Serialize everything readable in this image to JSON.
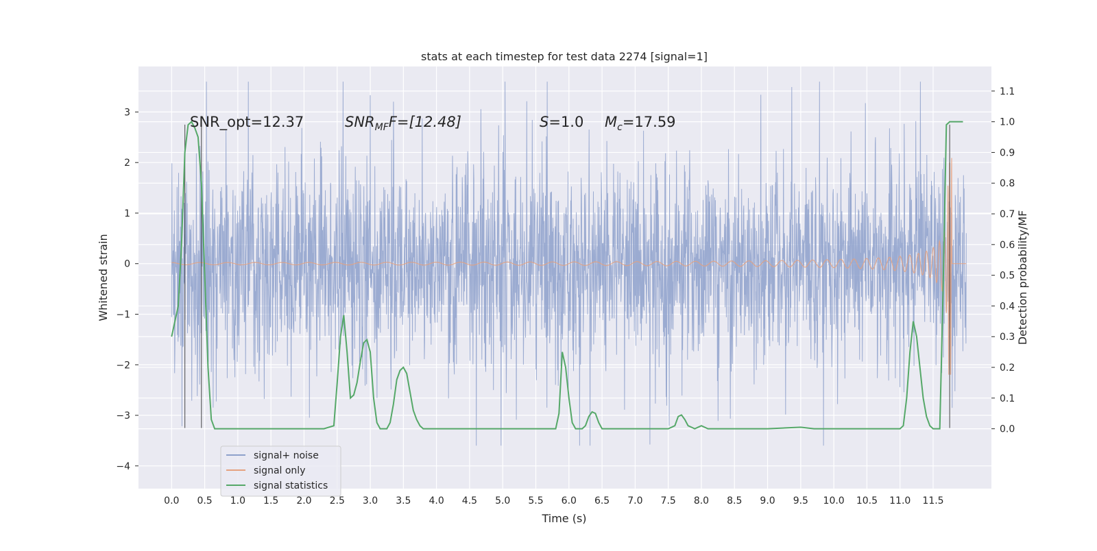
{
  "chart_data": {
    "type": "line",
    "title": "stats at each timestep for test data 2274 [signal=1]",
    "xlabel": "Time (s)",
    "ylabel_left": "Whitened strain",
    "ylabel_right": "Detection probability/MF",
    "xlim": [
      -0.5,
      12.38
    ],
    "ylim_left": [
      -4.45,
      3.9
    ],
    "ylim_right": [
      -0.195,
      1.18
    ],
    "x_ticks": [
      "0.0",
      "0.5",
      "1.0",
      "1.5",
      "2.0",
      "2.5",
      "3.0",
      "3.5",
      "4.0",
      "4.5",
      "5.0",
      "5.5",
      "6.0",
      "6.5",
      "7.0",
      "7.5",
      "8.0",
      "8.5",
      "9.0",
      "9.5",
      "10.0",
      "10.5",
      "11.0",
      "11.5"
    ],
    "y_ticks_left": [
      "−4",
      "−3",
      "−2",
      "−1",
      "0",
      "1",
      "2",
      "3"
    ],
    "y_ticks_right": [
      "0.0",
      "0.1",
      "0.2",
      "0.3",
      "0.4",
      "0.5",
      "0.6",
      "0.7",
      "0.8",
      "0.9",
      "1.0",
      "1.1"
    ],
    "grid": true,
    "legend_position": "lower-left",
    "annotations": {
      "snr_opt": "SNR_opt=12.37",
      "snr_mf_prefix": "SNR",
      "snr_mf_sub": "MF",
      "snr_mf_suffix": "F=[12.48]",
      "s_var": "S",
      "s_value": "=1.0",
      "mc_var": "M",
      "mc_sub": "c",
      "mc_value": "=17.59"
    },
    "series": [
      {
        "name": "signal+ noise",
        "color": "#8da0cb",
        "axis": "left",
        "description_values": {
          "t_start": 0.0,
          "t_end": 12.0,
          "typical_range": [
            -1.6,
            1.6
          ],
          "max": 3.6,
          "min": -3.6
        }
      },
      {
        "name": "signal only",
        "color": "#e5a17f",
        "axis": "left",
        "description_values": {
          "t_merger": 11.75,
          "envelope_start_t": 7.5,
          "peak_amplitude": 2.2
        }
      },
      {
        "name": "signal statistics",
        "color": "#55a868",
        "axis": "right",
        "x": [
          0.0,
          0.1,
          0.15,
          0.2,
          0.25,
          0.3,
          0.35,
          0.4,
          0.45,
          0.5,
          0.55,
          0.6,
          0.65,
          0.8,
          1.0,
          1.5,
          2.0,
          2.3,
          2.45,
          2.5,
          2.55,
          2.6,
          2.65,
          2.7,
          2.75,
          2.8,
          2.85,
          2.9,
          2.95,
          3.0,
          3.05,
          3.1,
          3.15,
          3.2,
          3.25,
          3.3,
          3.35,
          3.4,
          3.45,
          3.5,
          3.55,
          3.6,
          3.65,
          3.7,
          3.75,
          3.8,
          3.85,
          3.9,
          3.95,
          4.0,
          4.2,
          4.5,
          4.7,
          5.0,
          5.5,
          5.8,
          5.85,
          5.9,
          5.95,
          6.0,
          6.05,
          6.1,
          6.15,
          6.2,
          6.25,
          6.3,
          6.35,
          6.4,
          6.45,
          6.5,
          6.6,
          7.0,
          7.5,
          7.6,
          7.65,
          7.7,
          7.75,
          7.8,
          7.85,
          7.9,
          8.0,
          8.1,
          8.2,
          8.5,
          9.0,
          9.5,
          9.7,
          10.0,
          10.5,
          11.0,
          11.05,
          11.1,
          11.15,
          11.2,
          11.25,
          11.3,
          11.35,
          11.4,
          11.45,
          11.5,
          11.55,
          11.6,
          11.65,
          11.7,
          11.75,
          11.8,
          11.85,
          11.9,
          11.95
        ],
        "y": [
          0.3,
          0.4,
          0.6,
          0.9,
          0.99,
          1.0,
          0.98,
          0.95,
          0.8,
          0.5,
          0.2,
          0.03,
          0.0,
          0.0,
          0.0,
          0.0,
          0.0,
          0.0,
          0.01,
          0.15,
          0.3,
          0.37,
          0.25,
          0.1,
          0.11,
          0.15,
          0.22,
          0.28,
          0.29,
          0.25,
          0.1,
          0.02,
          0.0,
          0.0,
          0.0,
          0.02,
          0.08,
          0.16,
          0.19,
          0.2,
          0.18,
          0.12,
          0.06,
          0.03,
          0.01,
          0.0,
          0.0,
          0.0,
          0.0,
          0.0,
          0.0,
          0.0,
          0.0,
          0.0,
          0.0,
          0.0,
          0.05,
          0.25,
          0.2,
          0.1,
          0.02,
          0.0,
          0.0,
          0.0,
          0.01,
          0.04,
          0.055,
          0.05,
          0.02,
          0.0,
          0.0,
          0.0,
          0.0,
          0.01,
          0.04,
          0.045,
          0.03,
          0.01,
          0.005,
          0.0,
          0.01,
          0.0,
          0.0,
          0.0,
          0.0,
          0.005,
          0.0,
          0.0,
          0.0,
          0.0,
          0.01,
          0.1,
          0.25,
          0.35,
          0.3,
          0.2,
          0.1,
          0.04,
          0.01,
          0.0,
          0.0,
          0.0,
          0.45,
          0.99,
          1.0,
          1.0,
          1.0,
          1.0,
          1.0
        ]
      }
    ],
    "vertical_markers": [
      {
        "x": 0.2,
        "y_from": -3.25,
        "y_to": 2.75
      },
      {
        "x": 0.45,
        "y_from": -3.25,
        "y_to": 2.75
      },
      {
        "x": 11.75,
        "y_from": -3.25,
        "y_to": 2.75
      }
    ]
  }
}
